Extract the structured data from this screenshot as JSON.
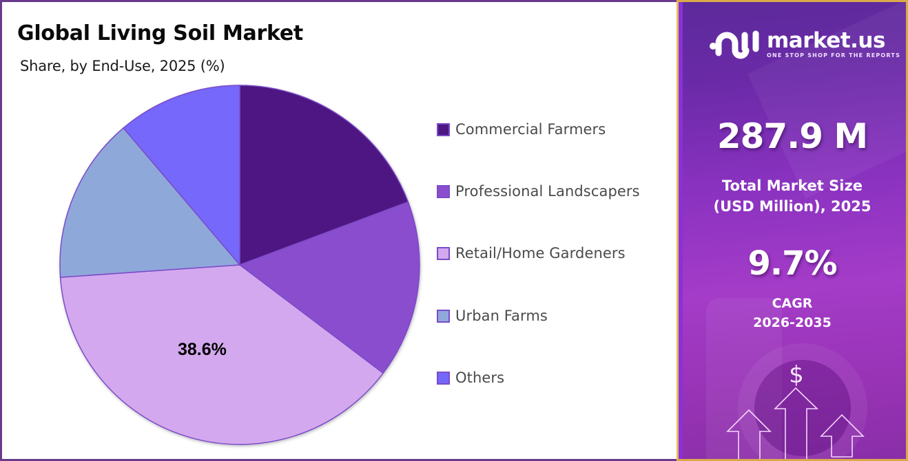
{
  "header": {
    "title": "Global Living Soil Market",
    "subtitle": "Share, by End-Use, 2025 (%)"
  },
  "chart_data": {
    "type": "pie",
    "title": "Global Living Soil Market",
    "subtitle": "Share, by End-Use, 2025 (%)",
    "categories": [
      "Commercial Farmers",
      "Professional Landscapers",
      "Retail/Home Gardeners",
      "Urban Farms",
      "Others"
    ],
    "values": [
      19.3,
      16.0,
      38.6,
      14.9,
      11.2
    ],
    "colors": [
      "#4e1782",
      "#8a4dce",
      "#d3a8ee",
      "#8fa8da",
      "#7468fb"
    ],
    "labeled_values": {
      "Retail/Home Gardeners": "38.6%"
    },
    "start_angle_deg": 0,
    "direction": "clockwise",
    "legend_position": "right",
    "note": "Only 38.6% is labeled; other shares estimated from slice angles"
  },
  "pie": {
    "highlight_label": "38.6%"
  },
  "legend": {
    "items": [
      {
        "label": "Commercial Farmers",
        "color": "#4e1782"
      },
      {
        "label": "Professional Landscapers",
        "color": "#8a4dce"
      },
      {
        "label": "Retail/Home Gardeners",
        "color": "#d3a8ee"
      },
      {
        "label": "Urban Farms",
        "color": "#8fa8da"
      },
      {
        "label": "Others",
        "color": "#7468fb"
      }
    ]
  },
  "sidebar": {
    "brand": {
      "name": "market.us",
      "tagline": "ONE STOP SHOP FOR THE REPORTS"
    },
    "market_size": {
      "value": "287.9 M",
      "caption_line1": "Total Market Size",
      "caption_line2": "(USD Million), 2025"
    },
    "cagr": {
      "value": "9.7%",
      "caption_line1": "CAGR",
      "caption_line2": "2026-2035"
    },
    "dollar_symbol": "$"
  },
  "colors": {
    "frame_purple": "#6b3a8c",
    "frame_gold": "#d9a94a",
    "panel_purple": "#8a32c0"
  }
}
